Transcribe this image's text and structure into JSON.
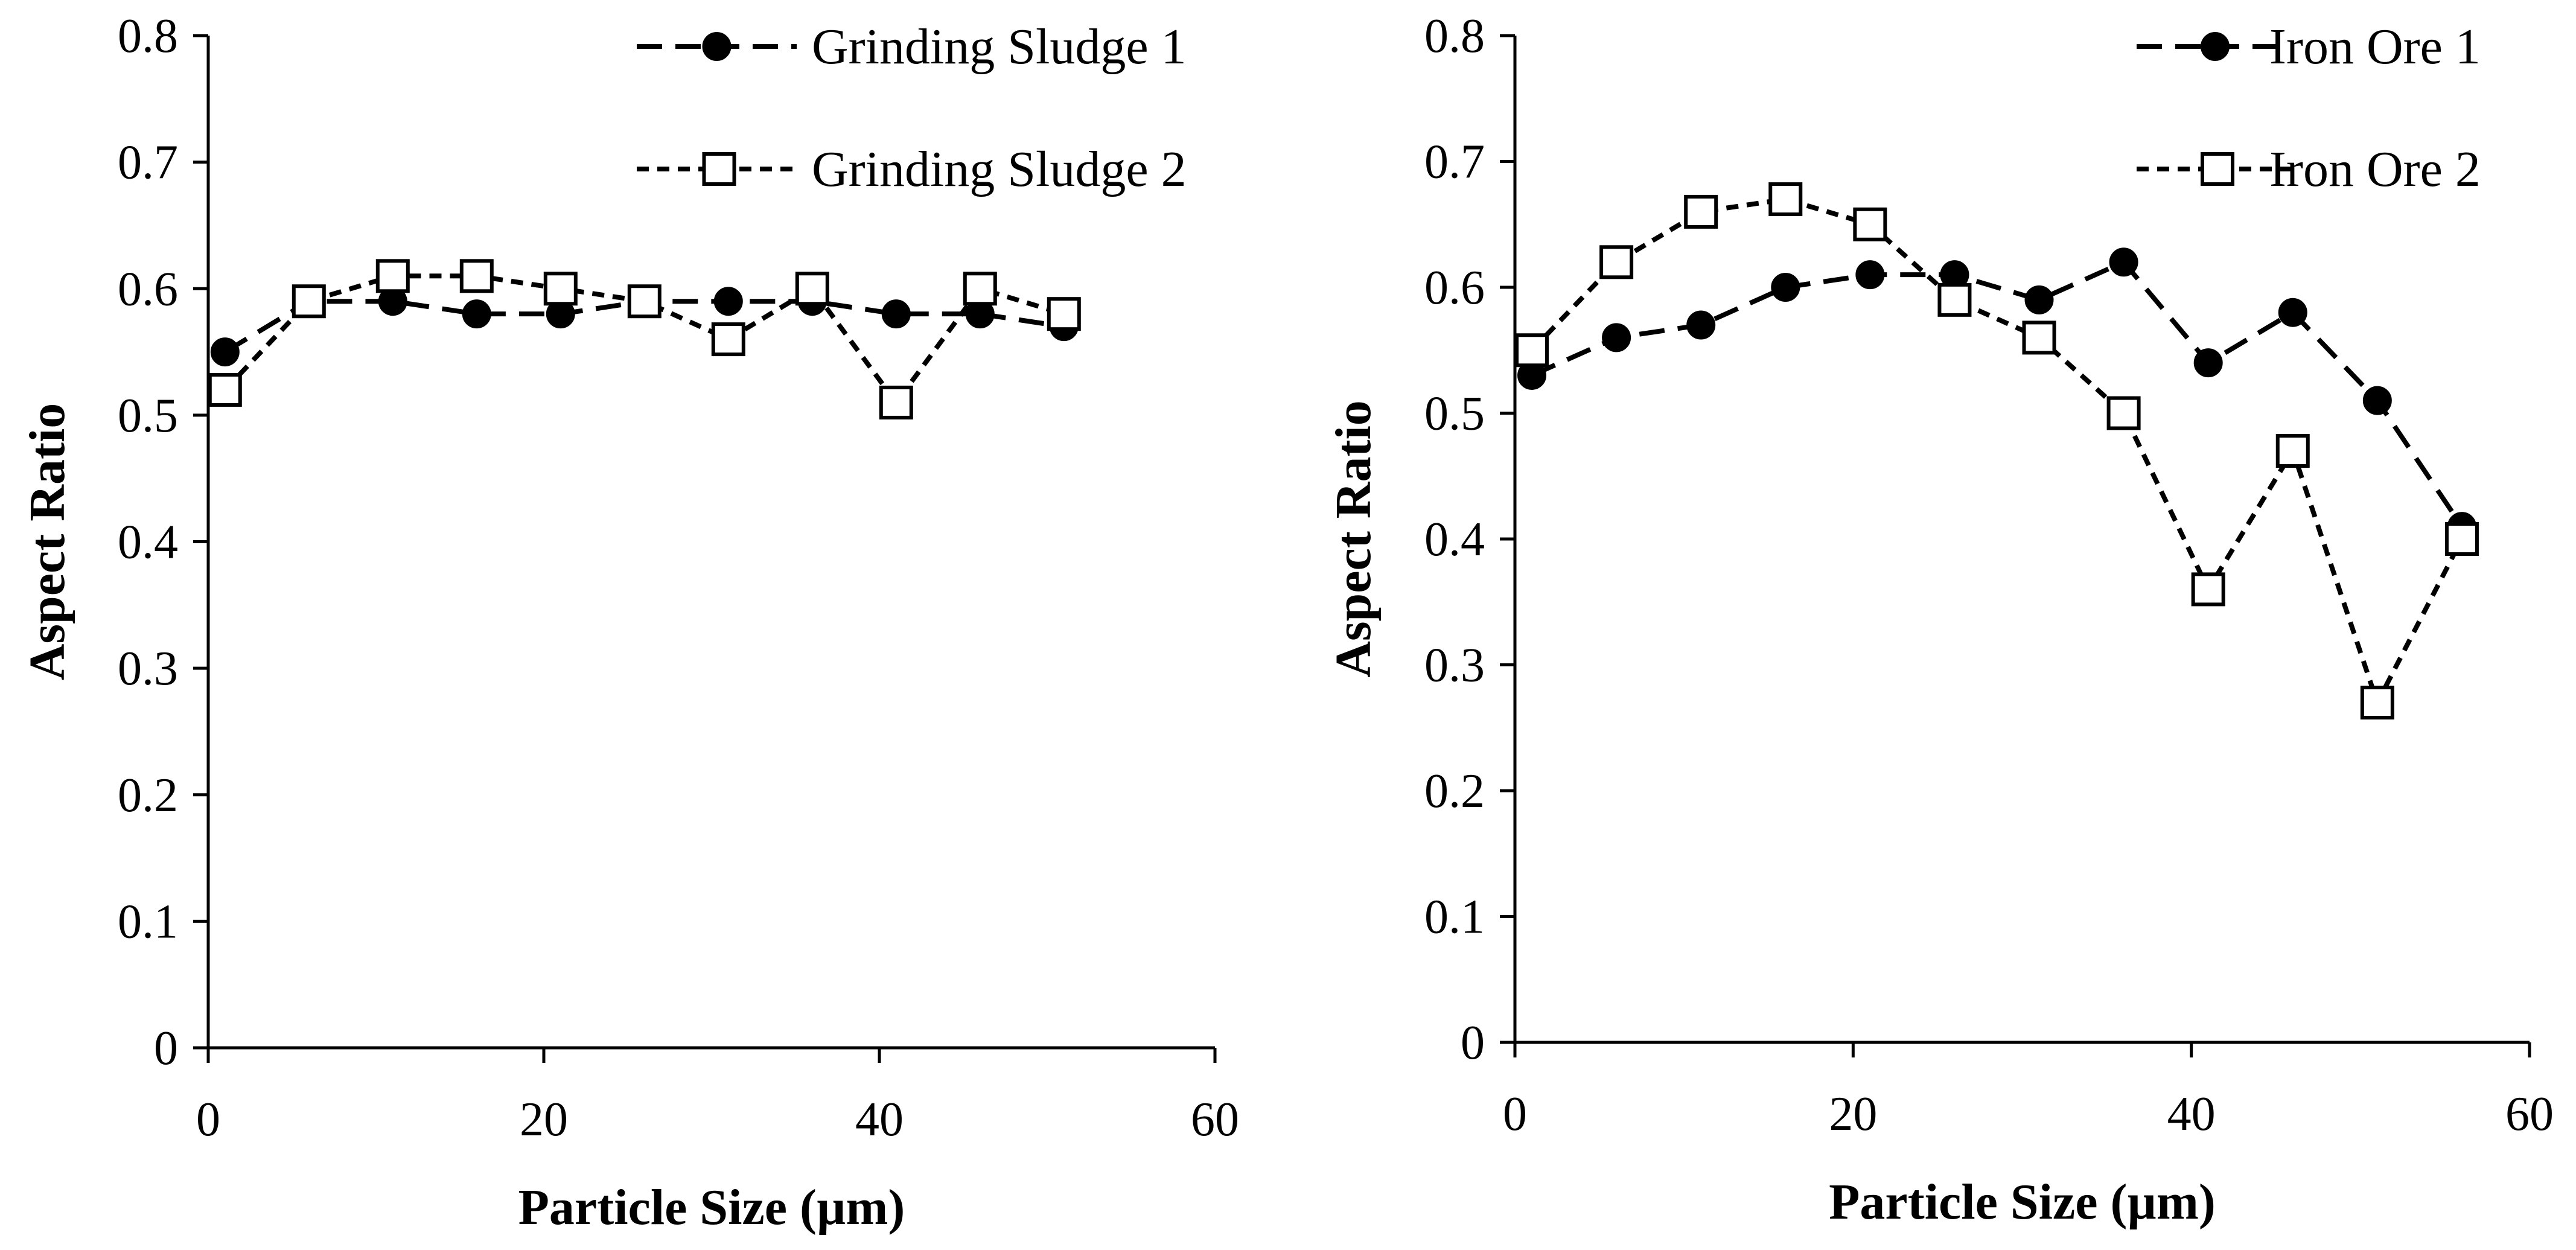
{
  "chart_data": [
    {
      "type": "line",
      "xlabel": "Particle Size (µm)",
      "ylabel": "Aspect Ratio",
      "xlim": [
        0,
        60
      ],
      "ylim": [
        0,
        0.8
      ],
      "xticks": [
        0,
        20,
        40,
        60
      ],
      "yticks": [
        0,
        0.1,
        0.2,
        0.3,
        0.4,
        0.5,
        0.6,
        0.7,
        0.8
      ],
      "xtick_labels": [
        "0",
        "20",
        "40",
        "60"
      ],
      "ytick_labels": [
        "0",
        "0.1",
        "0.2",
        "0.3",
        "0.4",
        "0.5",
        "0.6",
        "0.7",
        "0.8"
      ],
      "grid": false,
      "legend_position": "top-right",
      "series": [
        {
          "name": "Grinding Sludge 1",
          "marker": "filled-circle",
          "line": "dashed",
          "x": [
            1,
            6,
            11,
            16,
            21,
            26,
            31,
            36,
            41,
            46,
            51
          ],
          "y": [
            0.55,
            0.59,
            0.59,
            0.58,
            0.58,
            0.59,
            0.59,
            0.59,
            0.58,
            0.58,
            0.57
          ]
        },
        {
          "name": "Grinding Sludge 2",
          "marker": "open-square",
          "line": "short-dashed",
          "x": [
            1,
            6,
            11,
            16,
            21,
            26,
            31,
            36,
            41,
            46,
            51
          ],
          "y": [
            0.52,
            0.59,
            0.61,
            0.61,
            0.6,
            0.59,
            0.56,
            0.6,
            0.51,
            0.6,
            0.58
          ]
        }
      ]
    },
    {
      "type": "line",
      "xlabel": "Particle Size (µm)",
      "ylabel": "Aspect Ratio",
      "xlim": [
        0,
        60
      ],
      "ylim": [
        0,
        0.8
      ],
      "xticks": [
        0,
        20,
        40,
        60
      ],
      "yticks": [
        0,
        0.1,
        0.2,
        0.3,
        0.4,
        0.5,
        0.6,
        0.7,
        0.8
      ],
      "xtick_labels": [
        "0",
        "20",
        "40",
        "60"
      ],
      "ytick_labels": [
        "0",
        "0.1",
        "0.2",
        "0.3",
        "0.4",
        "0.5",
        "0.6",
        "0.7",
        "0.8"
      ],
      "grid": false,
      "legend_position": "top-right",
      "series": [
        {
          "name": "Iron Ore 1",
          "marker": "filled-circle",
          "line": "dashed",
          "x": [
            1,
            6,
            11,
            16,
            21,
            26,
            31,
            36,
            41,
            46,
            51,
            56
          ],
          "y": [
            0.53,
            0.56,
            0.57,
            0.6,
            0.61,
            0.61,
            0.59,
            0.62,
            0.54,
            0.58,
            0.51,
            0.41
          ]
        },
        {
          "name": "Iron Ore 2",
          "marker": "open-square",
          "line": "short-dashed",
          "x": [
            1,
            6,
            11,
            16,
            21,
            26,
            31,
            36,
            41,
            46,
            51,
            56
          ],
          "y": [
            0.55,
            0.62,
            0.66,
            0.67,
            0.65,
            0.59,
            0.56,
            0.5,
            0.36,
            0.47,
            0.27,
            0.4
          ]
        }
      ]
    }
  ]
}
